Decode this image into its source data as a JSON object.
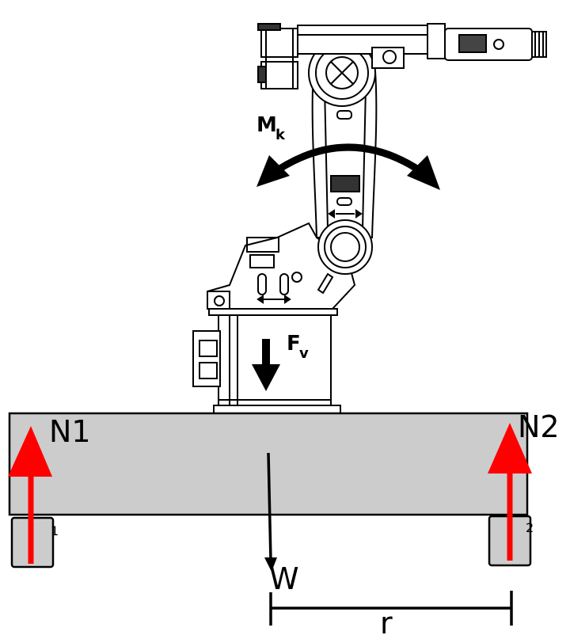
{
  "labels": {
    "moment": "M",
    "moment_sub": "k",
    "vertical_force": "F",
    "vertical_force_sub": "v",
    "reaction_left": "N1",
    "reaction_right": "N2",
    "support_left_index": "1",
    "support_right_index": "2",
    "weight": "W",
    "distance": "r"
  },
  "colors": {
    "slab_fill": "#cccccc",
    "reaction_arrow": "#ff0000",
    "ink": "#000000",
    "background": "#ffffff"
  }
}
